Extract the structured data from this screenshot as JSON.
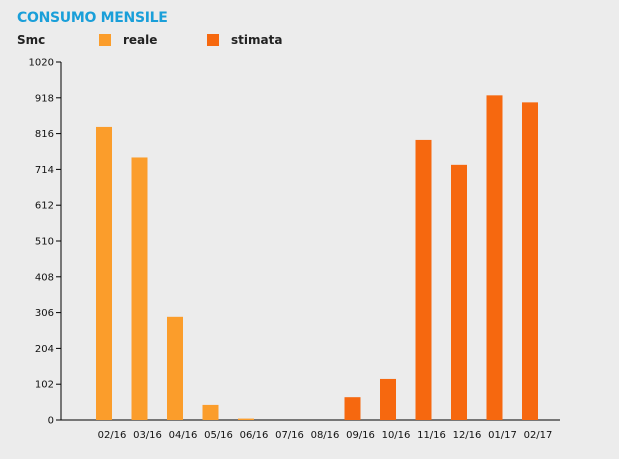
{
  "header": {
    "title": "CONSUMO MENSILE",
    "unit": "Smc"
  },
  "legend": [
    {
      "label": "reale",
      "color": "#fb9d2b"
    },
    {
      "label": "stimata",
      "color": "#f6680f"
    }
  ],
  "chart_data": {
    "type": "bar",
    "title": "CONSUMO MENSILE",
    "ylabel": "Smc",
    "categories": [
      "02/16",
      "03/16",
      "04/16",
      "05/16",
      "06/16",
      "07/16",
      "08/16",
      "09/16",
      "10/16",
      "11/16",
      "12/16",
      "01/17",
      "02/17"
    ],
    "series": [
      {
        "name": "reale",
        "color": "#fb9d2b",
        "values": [
          835,
          748,
          294,
          43,
          4,
          0,
          0,
          null,
          null,
          null,
          null,
          null,
          null
        ]
      },
      {
        "name": "stimata",
        "color": "#f6680f",
        "values": [
          null,
          null,
          null,
          null,
          null,
          0,
          0,
          65,
          117,
          798,
          727,
          925,
          905
        ]
      }
    ],
    "ylim": [
      0,
      1020
    ],
    "yticks": [
      0,
      102,
      204,
      306,
      408,
      510,
      612,
      714,
      816,
      918,
      1020
    ],
    "grid": false,
    "legend_position": "top"
  }
}
